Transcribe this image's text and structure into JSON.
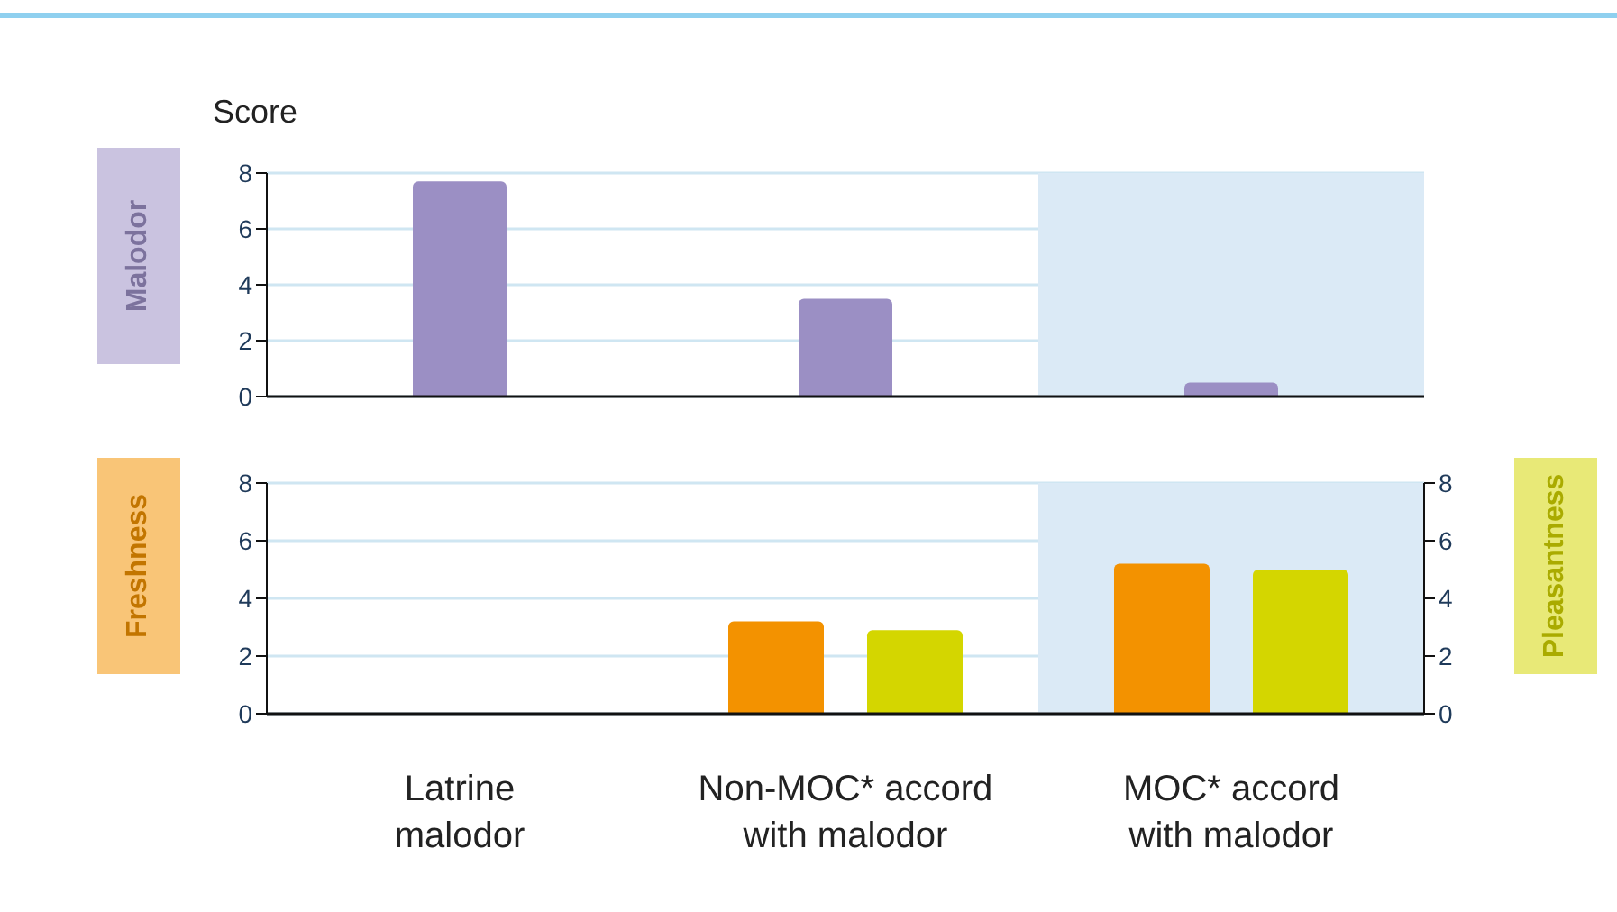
{
  "chart_data": [
    {
      "type": "bar",
      "ylabel": "Malodor",
      "annotations": [
        "Score"
      ],
      "categories": [
        "Latrine malodor",
        "Non-MOC* accord with malodor",
        "MOC* accord with malodor"
      ],
      "values": [
        7.7,
        3.5,
        0.5
      ],
      "color": "#9b8fc4",
      "ylim": [
        0,
        8
      ],
      "yticks": [
        0,
        2,
        4,
        6,
        8
      ],
      "grid": "y",
      "tick_labels": "y",
      "bands": [
        {
          "axis": "x",
          "from": "MOC* accord with malodor",
          "to": "MOC* accord with malodor",
          "color": "#dbeaf6"
        }
      ]
    },
    {
      "type": "bar",
      "ylabel": "Freshness",
      "y2label": "Pleasantness",
      "categories": [
        "Latrine malodor",
        "Non-MOC* accord with malodor",
        "MOC* accord with malodor"
      ],
      "series": [
        {
          "color": "#f39200",
          "values": [
            0,
            3.2,
            5.2
          ]
        },
        {
          "color": "#d4d600",
          "values": [
            0,
            2.9,
            5.0
          ],
          "axis": "y2"
        }
      ],
      "ylim": [
        0,
        8
      ],
      "yticks": [
        0,
        2,
        4,
        6,
        8
      ],
      "y2lim": [
        0,
        8
      ],
      "y2ticks": [
        0,
        2,
        4,
        6,
        8
      ],
      "grid": "y",
      "bands": [
        {
          "axis": "x",
          "from": "MOC* accord with malodor",
          "to": "MOC* accord with malodor",
          "color": "#dbeaf6"
        }
      ]
    }
  ]
}
